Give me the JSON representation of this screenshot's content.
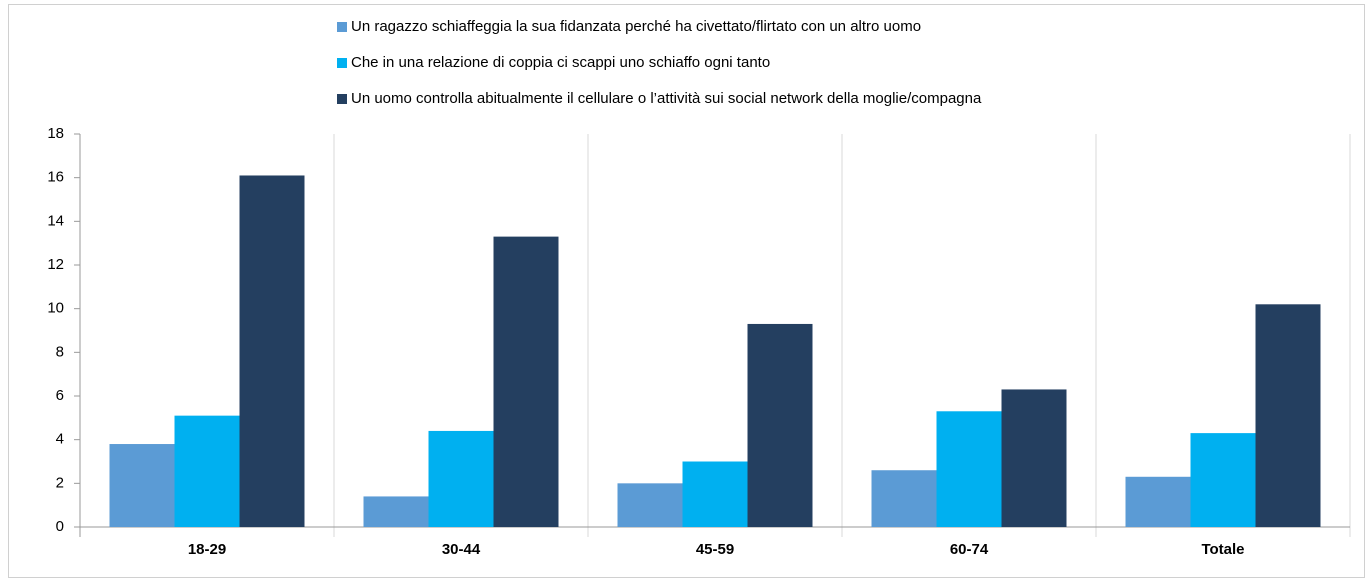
{
  "chart_data": {
    "type": "bar",
    "categories": [
      "18-29",
      "30-44",
      "45-59",
      "60-74",
      "Totale"
    ],
    "series": [
      {
        "name": "Un ragazzo schiaffeggia la sua fidanzata perché ha civettato/flirtato con un altro uomo",
        "color": "#5b9bd5",
        "values": [
          3.8,
          1.4,
          2.0,
          2.6,
          2.3
        ]
      },
      {
        "name": "Che in una relazione di coppia ci scappi uno schiaffo ogni tanto",
        "color": "#00b0f0",
        "values": [
          5.1,
          4.4,
          3.0,
          5.3,
          4.3
        ]
      },
      {
        "name": "Un uomo controlla abitualmente il cellulare o l’attività sui social network della moglie/compagna",
        "color": "#243f60",
        "values": [
          16.1,
          13.3,
          9.3,
          6.3,
          10.2
        ]
      }
    ],
    "ylim": [
      0,
      18
    ],
    "yticks": [
      0,
      2,
      4,
      6,
      8,
      10,
      12,
      14,
      16,
      18
    ],
    "legend": "top"
  }
}
